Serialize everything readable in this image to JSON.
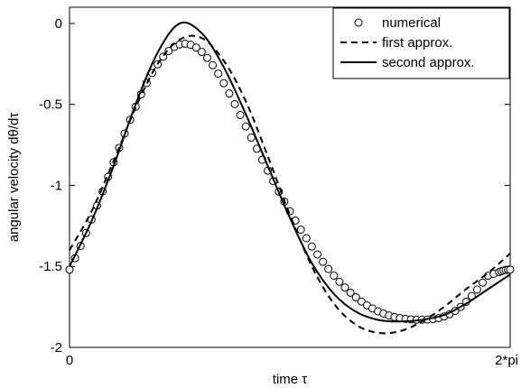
{
  "chart_data": {
    "type": "line",
    "title": "",
    "xlabel": "time τ",
    "ylabel": "angular velocity  dθ/dτ",
    "xlim": [
      0,
      6.2832
    ],
    "ylim": [
      -2,
      0.1
    ],
    "x_ticks": [
      {
        "value": 0,
        "label": "0"
      },
      {
        "value": 6.2832,
        "label": "2*pi"
      }
    ],
    "y_ticks": [
      {
        "value": 0,
        "label": "0"
      },
      {
        "value": -0.5,
        "label": "-0.5"
      },
      {
        "value": -1,
        "label": "-1"
      },
      {
        "value": -1.5,
        "label": "-1.5"
      },
      {
        "value": -2,
        "label": "-2"
      }
    ],
    "grid": false,
    "legend_position": "top-right",
    "series": [
      {
        "name": "numerical",
        "style": "markers-circle",
        "color": "#000000",
        "x": [
          0.0,
          0.0785,
          0.1571,
          0.2356,
          0.3142,
          0.3927,
          0.4712,
          0.5498,
          0.6283,
          0.7069,
          0.7854,
          0.8639,
          0.9425,
          1.021,
          1.0996,
          1.1781,
          1.2566,
          1.3352,
          1.4137,
          1.4923,
          1.5708,
          1.6493,
          1.7279,
          1.8064,
          1.885,
          1.9635,
          2.042,
          2.1206,
          2.1991,
          2.2777,
          2.3562,
          2.4347,
          2.5133,
          2.5918,
          2.6704,
          2.7489,
          2.8274,
          2.906,
          2.9845,
          3.0631,
          3.1416,
          3.2201,
          3.2987,
          3.3772,
          3.4558,
          3.5343,
          3.6128,
          3.6914,
          3.7699,
          3.8485,
          3.927,
          4.0055,
          4.0841,
          4.1626,
          4.2412,
          4.3197,
          4.3982,
          4.4768,
          4.5553,
          4.6339,
          4.7124,
          4.7909,
          4.8695,
          4.948,
          5.0265,
          5.1051,
          5.1836,
          5.2622,
          5.3407,
          5.4192,
          5.4978,
          5.5763,
          5.6549,
          5.7334,
          5.8119,
          5.8905,
          5.969,
          6.0476,
          6.1261,
          6.1575,
          6.1889,
          6.2203,
          6.2517,
          6.2832
        ],
        "y": [
          -1.52,
          -1.449,
          -1.374,
          -1.294,
          -1.211,
          -1.125,
          -1.037,
          -0.947,
          -0.857,
          -0.768,
          -0.68,
          -0.595,
          -0.514,
          -0.438,
          -0.368,
          -0.306,
          -0.252,
          -0.206,
          -0.17,
          -0.145,
          -0.13,
          -0.125,
          -0.132,
          -0.149,
          -0.176,
          -0.213,
          -0.258,
          -0.31,
          -0.369,
          -0.432,
          -0.498,
          -0.566,
          -0.636,
          -0.705,
          -0.774,
          -0.842,
          -0.909,
          -0.974,
          -1.038,
          -1.1,
          -1.159,
          -1.217,
          -1.273,
          -1.326,
          -1.377,
          -1.426,
          -1.472,
          -1.516,
          -1.557,
          -1.595,
          -1.63,
          -1.662,
          -1.691,
          -1.717,
          -1.74,
          -1.76,
          -1.777,
          -1.791,
          -1.803,
          -1.812,
          -1.819,
          -1.824,
          -1.827,
          -1.829,
          -1.829,
          -1.828,
          -1.825,
          -1.819,
          -1.809,
          -1.795,
          -1.775,
          -1.75,
          -1.719,
          -1.683,
          -1.643,
          -1.6,
          -1.558,
          -1.546,
          -1.535,
          -1.529,
          -1.525,
          -1.522,
          -1.52,
          -1.52
        ]
      },
      {
        "name": "first approx.",
        "style": "dashed",
        "color": "#000000",
        "x": [
          0.0,
          0.3142,
          0.6283,
          0.9425,
          1.2566,
          1.5708,
          1.885,
          2.1991,
          2.5133,
          2.8274,
          3.1416,
          3.4558,
          3.7699,
          4.0841,
          4.3982,
          4.7124,
          5.0265,
          5.3407,
          5.6549,
          5.969,
          6.2832
        ],
        "y": [
          -1.4,
          -1.16,
          -0.85,
          -0.52,
          -0.25,
          -0.1,
          -0.09,
          -0.23,
          -0.48,
          -0.82,
          -1.18,
          -1.5,
          -1.73,
          -1.86,
          -1.91,
          -1.9,
          -1.84,
          -1.75,
          -1.64,
          -1.54,
          -1.42
        ]
      },
      {
        "name": "second approx.",
        "style": "solid",
        "color": "#000000",
        "x": [
          0.0,
          0.3142,
          0.6283,
          0.9425,
          1.2566,
          1.5708,
          1.885,
          2.1991,
          2.5133,
          2.8274,
          3.1416,
          3.4558,
          3.7699,
          4.0841,
          4.3982,
          4.7124,
          5.0265,
          5.3407,
          5.6549,
          5.969,
          6.2832
        ],
        "y": [
          -1.5,
          -1.22,
          -0.88,
          -0.5,
          -0.18,
          0.0,
          -0.06,
          -0.27,
          -0.56,
          -0.88,
          -1.2,
          -1.48,
          -1.67,
          -1.78,
          -1.83,
          -1.84,
          -1.83,
          -1.8,
          -1.73,
          -1.64,
          -1.55
        ]
      }
    ]
  }
}
